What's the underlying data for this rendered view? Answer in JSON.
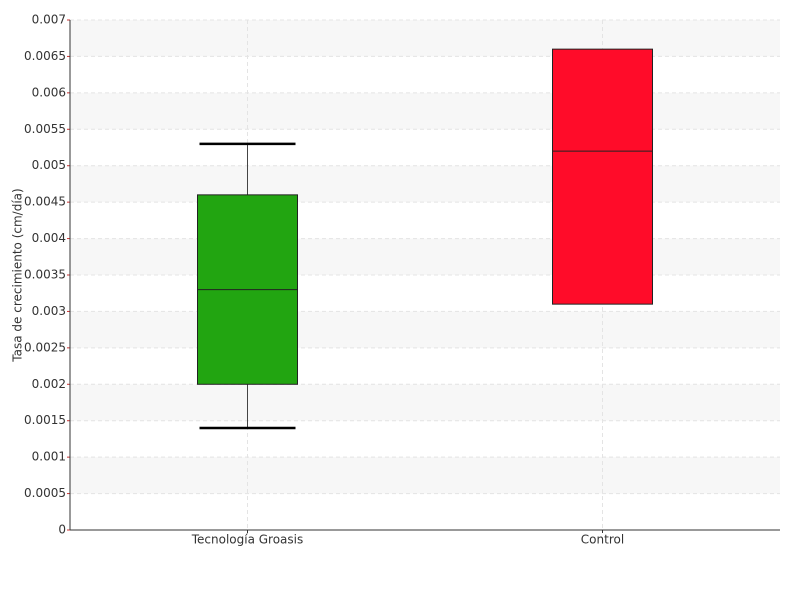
{
  "chart_data": {
    "type": "box",
    "y_label": "Tasa de crecimiento (cm/día)",
    "categories": [
      "Tecnología Groasis",
      "Control"
    ],
    "boxes": [
      {
        "min": 0.0014,
        "q1": 0.002,
        "median": 0.0033,
        "q3": 0.0046,
        "max": 0.0053,
        "color": "#22a511"
      },
      {
        "min": 0.0031,
        "q1": 0.0031,
        "median": 0.0052,
        "q3": 0.0066,
        "max": 0.0066,
        "color": "#ff0c29"
      }
    ],
    "ylim": [
      0,
      0.007
    ],
    "yticks": [
      0,
      0.0005,
      0.001,
      0.0015,
      0.002,
      0.0025,
      0.003,
      0.0035,
      0.004,
      0.0045,
      0.005,
      0.0055,
      0.006,
      0.0065,
      0.007
    ],
    "grid": true
  }
}
